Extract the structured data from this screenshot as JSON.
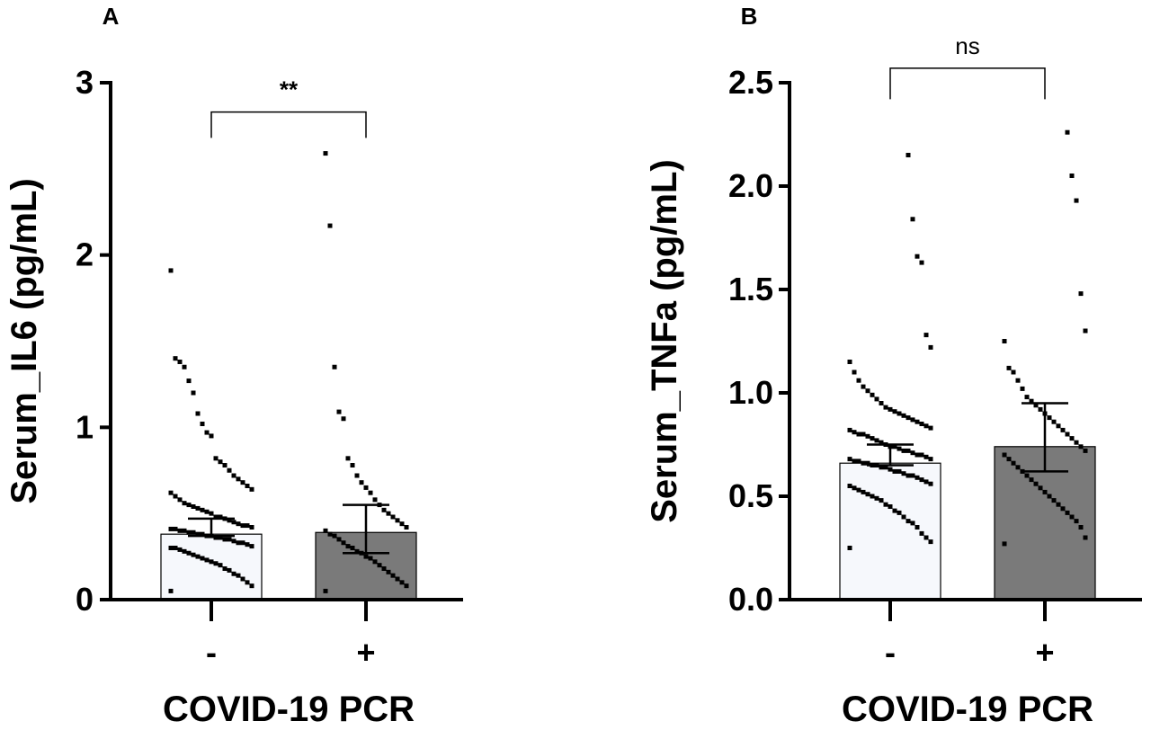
{
  "colors": {
    "axis": "#000000",
    "bar_negative": "#f6f8fc",
    "bar_positive": "#7a7a7a",
    "point": "#000000"
  },
  "chart_data": [
    {
      "type": "bar",
      "panel": "A",
      "title": "",
      "xlabel": "COVID-19 PCR",
      "ylabel": "Serum_IL6 (pg/mL)",
      "ylim": [
        0,
        3
      ],
      "y_ticks": [
        0,
        1,
        2,
        3
      ],
      "y_tick_labels": [
        "0",
        "1",
        "2",
        "3"
      ],
      "categories": [
        "-",
        "+"
      ],
      "values": [
        0.38,
        0.39
      ],
      "error_bars": [
        {
          "low": 0.37,
          "high": 0.47
        },
        {
          "low": 0.27,
          "high": 0.55
        }
      ],
      "significance": {
        "label": "**",
        "between": [
          "-",
          "+"
        ],
        "bracket_y": 2.83,
        "bracket_drop": 0.15
      },
      "points": [
        [
          0.05,
          0.08,
          0.1,
          0.12,
          0.14,
          0.15,
          0.17,
          0.18,
          0.2,
          0.21,
          0.22,
          0.23,
          0.24,
          0.25,
          0.26,
          0.27,
          0.28,
          0.29,
          0.3,
          0.3,
          0.31,
          0.32,
          0.33,
          0.33,
          0.34,
          0.35,
          0.35,
          0.36,
          0.36,
          0.37,
          0.37,
          0.38,
          0.38,
          0.39,
          0.39,
          0.4,
          0.4,
          0.41,
          0.41,
          0.42,
          0.43,
          0.43,
          0.44,
          0.45,
          0.46,
          0.47,
          0.48,
          0.48,
          0.5,
          0.51,
          0.52,
          0.53,
          0.54,
          0.55,
          0.56,
          0.58,
          0.6,
          0.62,
          0.64,
          0.66,
          0.68,
          0.7,
          0.72,
          0.75,
          0.78,
          0.8,
          0.82,
          0.95,
          0.97,
          1.02,
          1.08,
          1.2,
          1.27,
          1.35,
          1.38,
          1.4,
          1.91
        ],
        [
          0.05,
          0.08,
          0.1,
          0.12,
          0.14,
          0.16,
          0.18,
          0.2,
          0.22,
          0.24,
          0.25,
          0.27,
          0.28,
          0.3,
          0.31,
          0.33,
          0.35,
          0.37,
          0.38,
          0.4,
          0.42,
          0.44,
          0.46,
          0.48,
          0.5,
          0.52,
          0.55,
          0.58,
          0.62,
          0.65,
          0.68,
          0.72,
          0.78,
          0.82,
          1.05,
          1.09,
          1.35,
          2.17,
          2.59
        ]
      ]
    },
    {
      "type": "bar",
      "panel": "B",
      "title": "",
      "xlabel": "COVID-19 PCR",
      "ylabel": "Serum_TNFa  (pg/mL)",
      "ylim": [
        0,
        2.5
      ],
      "y_ticks": [
        0,
        0.5,
        1,
        1.5,
        2,
        2.5
      ],
      "y_tick_labels": [
        "0.0",
        "0.5",
        "1.0",
        "1.5",
        "2.0",
        "2.5"
      ],
      "categories": [
        "-",
        "+"
      ],
      "values": [
        0.66,
        0.74
      ],
      "error_bars": [
        {
          "low": 0.65,
          "high": 0.75
        },
        {
          "low": 0.62,
          "high": 0.95
        }
      ],
      "significance": {
        "label": "ns",
        "between": [
          "-",
          "+"
        ],
        "bracket_y": 2.57,
        "bracket_drop": 0.15
      },
      "points": [
        [
          0.25,
          0.28,
          0.3,
          0.32,
          0.35,
          0.37,
          0.38,
          0.4,
          0.42,
          0.43,
          0.45,
          0.46,
          0.48,
          0.49,
          0.5,
          0.51,
          0.52,
          0.53,
          0.54,
          0.55,
          0.56,
          0.57,
          0.58,
          0.59,
          0.6,
          0.6,
          0.61,
          0.62,
          0.62,
          0.63,
          0.64,
          0.64,
          0.65,
          0.65,
          0.66,
          0.66,
          0.67,
          0.67,
          0.68,
          0.68,
          0.69,
          0.7,
          0.7,
          0.71,
          0.72,
          0.72,
          0.73,
          0.74,
          0.74,
          0.75,
          0.76,
          0.77,
          0.78,
          0.79,
          0.8,
          0.8,
          0.81,
          0.82,
          0.83,
          0.84,
          0.85,
          0.86,
          0.87,
          0.88,
          0.89,
          0.9,
          0.91,
          0.92,
          0.93,
          0.95,
          0.97,
          0.99,
          1.01,
          1.03,
          1.06,
          1.1,
          1.15,
          1.22,
          1.28,
          1.63,
          1.66,
          1.84,
          2.15
        ],
        [
          0.27,
          0.3,
          0.35,
          0.38,
          0.4,
          0.42,
          0.44,
          0.46,
          0.48,
          0.5,
          0.52,
          0.54,
          0.56,
          0.58,
          0.6,
          0.62,
          0.64,
          0.66,
          0.68,
          0.7,
          0.72,
          0.74,
          0.76,
          0.78,
          0.8,
          0.82,
          0.84,
          0.86,
          0.88,
          0.9,
          0.92,
          0.94,
          0.96,
          0.98,
          1.02,
          1.06,
          1.1,
          1.12,
          1.25,
          1.3,
          1.48,
          1.93,
          2.05,
          2.26
        ]
      ]
    }
  ]
}
